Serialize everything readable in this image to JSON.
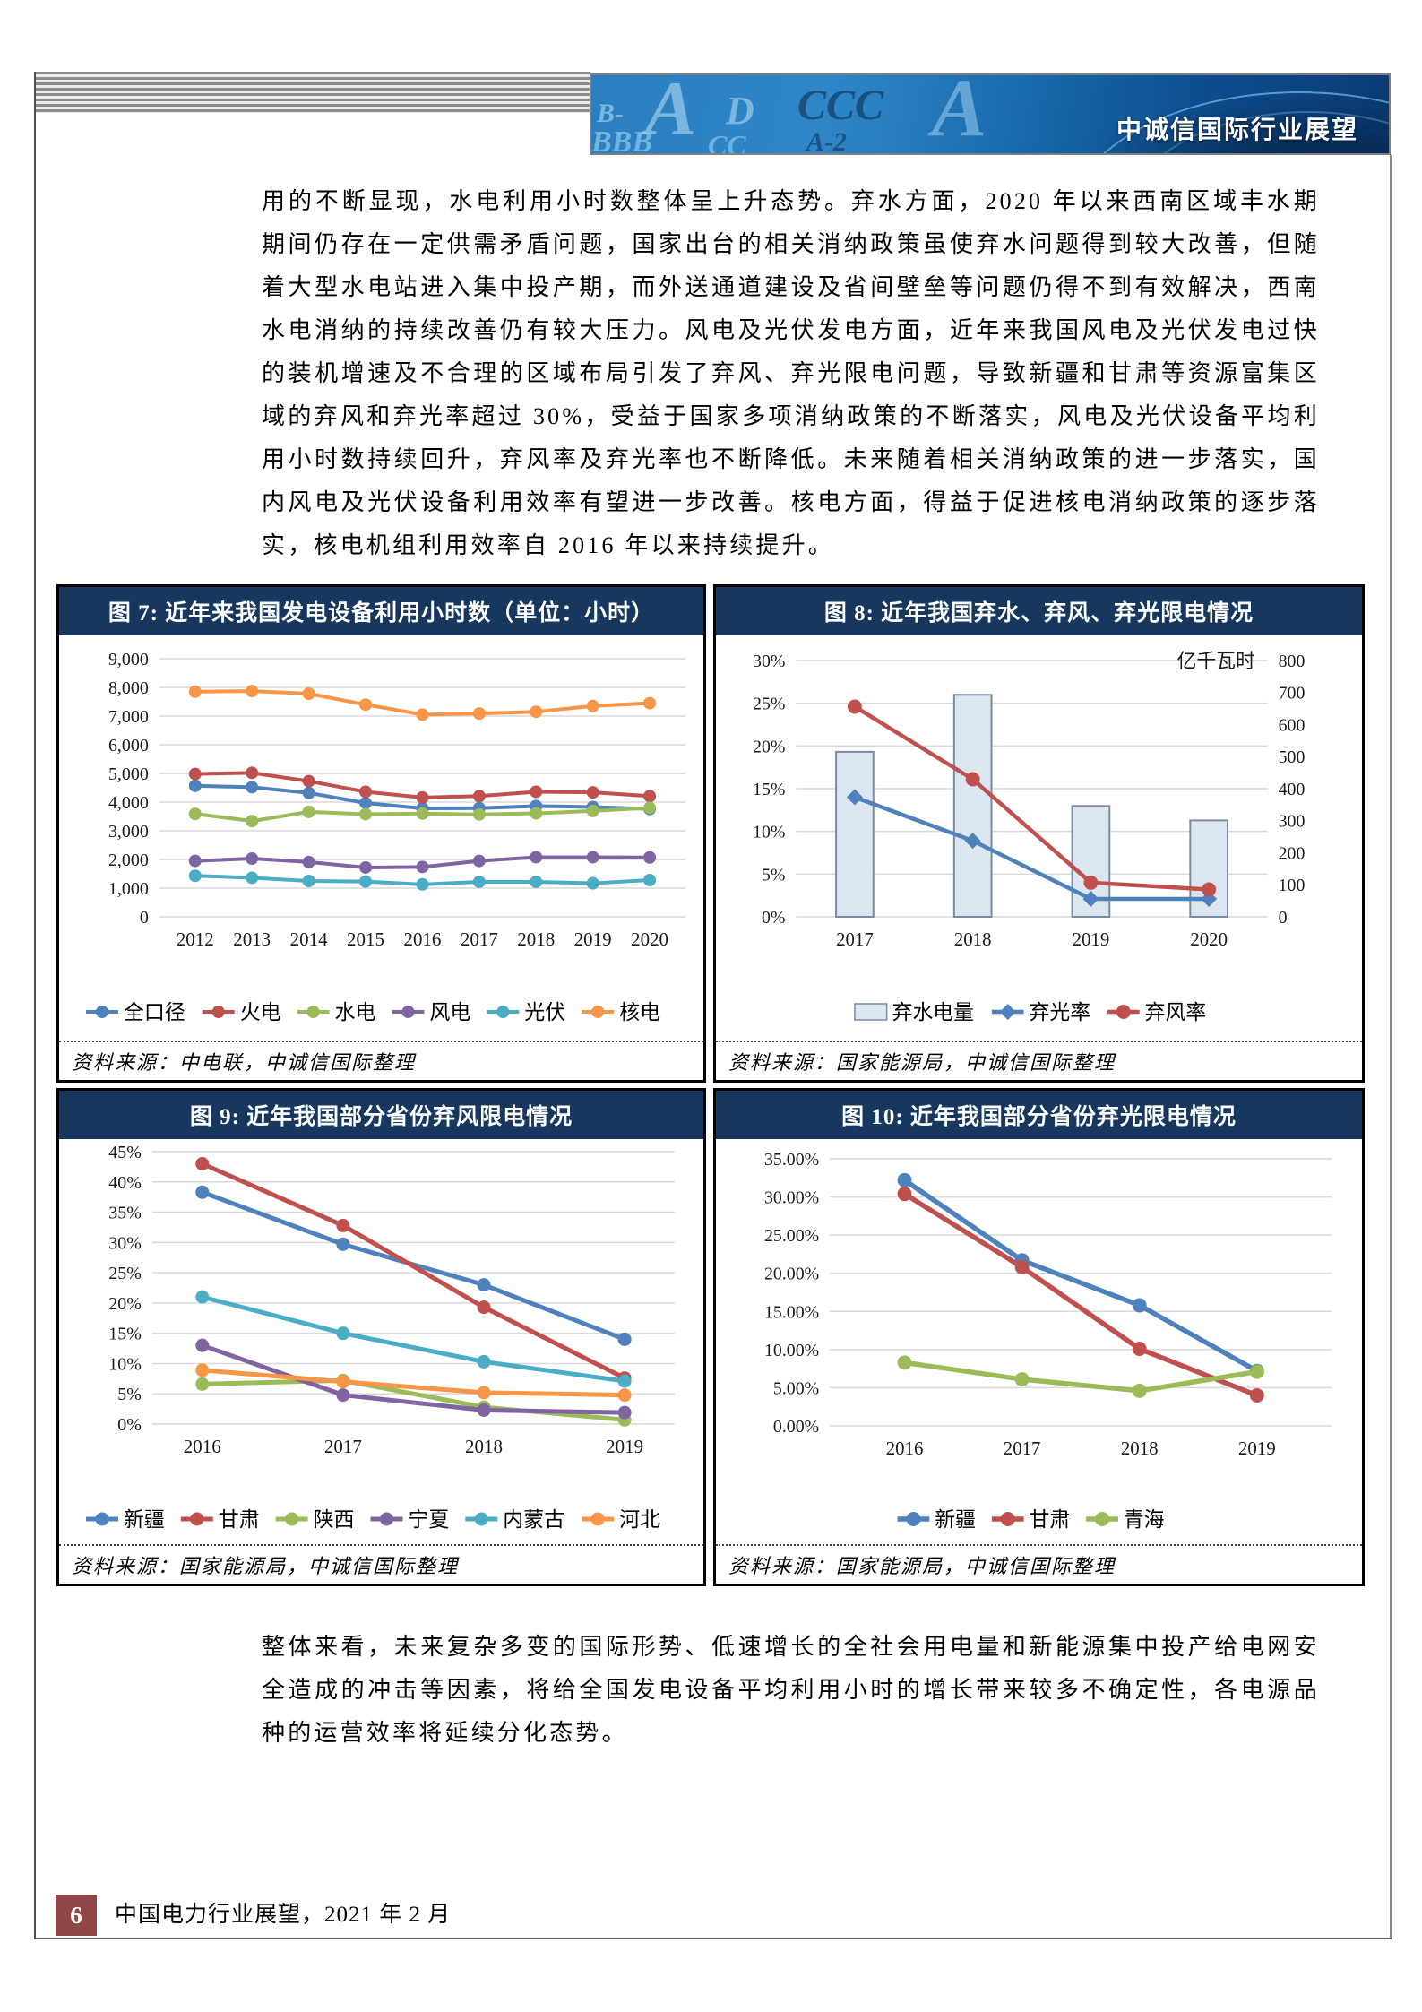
{
  "colors": {
    "title_bar": "#17375E",
    "footer_badge": "#8E4646"
  },
  "header": {
    "banner_title": "中诚信国际行业展望",
    "watermarks": [
      "B-",
      "A",
      "D",
      "CCC",
      "A",
      "BBB",
      "CC",
      "A-2"
    ]
  },
  "paragraphs": {
    "p1": "用的不断显现，水电利用小时数整体呈上升态势。弃水方面，2020 年以来西南区域丰水期期间仍存在一定供需矛盾问题，国家出台的相关消纳政策虽使弃水问题得到较大改善，但随着大型水电站进入集中投产期，而外送通道建设及省间壁垒等问题仍得不到有效解决，西南水电消纳的持续改善仍有较大压力。风电及光伏发电方面，近年来我国风电及光伏发电过快的装机增速及不合理的区域布局引发了弃风、弃光限电问题，导致新疆和甘肃等资源富集区域的弃风和弃光率超过 30%，受益于国家多项消纳政策的不断落实，风电及光伏设备平均利用小时数持续回升，弃风率及弃光率也不断降低。未来随着相关消纳政策的进一步落实，国内风电及光伏设备利用效率有望进一步改善。核电方面，得益于促进核电消纳政策的逐步落实，核电机组利用效率自 2016 年以来持续提升。",
    "p2": "整体来看，未来复杂多变的国际形势、低速增长的全社会用电量和新能源集中投产给电网安全造成的冲击等因素，将给全国发电设备平均利用小时的增长带来较多不确定性，各电源品种的运营效率将延续分化态势。"
  },
  "chart_data": [
    {
      "type": "line",
      "title": "图 7: 近年来我国发电设备利用小时数（单位：小时）",
      "source": "资料来源：中电联，中诚信国际整理",
      "categories": [
        "2012",
        "2013",
        "2014",
        "2015",
        "2016",
        "2017",
        "2018",
        "2019",
        "2020"
      ],
      "series": [
        {
          "name": "全口径",
          "color": "#4F81BD",
          "marker": "circle",
          "values": [
            4570,
            4520,
            4320,
            3970,
            3780,
            3790,
            3860,
            3830,
            3760
          ]
        },
        {
          "name": "火电",
          "color": "#C0504D",
          "marker": "circle",
          "values": [
            4980,
            5020,
            4730,
            4360,
            4160,
            4210,
            4360,
            4340,
            4210
          ]
        },
        {
          "name": "水电",
          "color": "#9BBB59",
          "marker": "circle",
          "values": [
            3590,
            3340,
            3660,
            3580,
            3600,
            3570,
            3610,
            3690,
            3800
          ]
        },
        {
          "name": "风电",
          "color": "#8064A2",
          "marker": "circle",
          "values": [
            1950,
            2030,
            1910,
            1720,
            1740,
            1950,
            2080,
            2080,
            2070
          ]
        },
        {
          "name": "光伏",
          "color": "#4BACC6",
          "marker": "circle",
          "values": [
            1430,
            1360,
            1250,
            1230,
            1130,
            1220,
            1220,
            1170,
            1280
          ]
        },
        {
          "name": "核电",
          "color": "#F79646",
          "marker": "circle",
          "values": [
            7850,
            7870,
            7780,
            7400,
            7050,
            7090,
            7150,
            7350,
            7450
          ]
        }
      ],
      "ylim": [
        0,
        9000
      ],
      "ytick": 1000,
      "yfmt": "thousands",
      "grid": true,
      "legend_position": "bottom"
    },
    {
      "type": "combo",
      "title": "图 8: 近年我国弃水、弃风、弃光限电情况",
      "source": "资料来源：国家能源局，中诚信国际整理",
      "categories": [
        "2017",
        "2018",
        "2019",
        "2020"
      ],
      "right_axis_label": "亿千瓦时",
      "bar_series": {
        "name": "弃水电量",
        "color": "#DCE6F1",
        "border": "#7A8BA0",
        "axis": "right",
        "values": [
          515,
          693,
          346,
          301
        ]
      },
      "line_series": [
        {
          "name": "弃光率",
          "color": "#4F81BD",
          "marker": "diamond",
          "values": [
            14.0,
            8.9,
            2.1,
            2.1
          ]
        },
        {
          "name": "弃风率",
          "color": "#C0504D",
          "marker": "circle",
          "values": [
            24.6,
            16.1,
            4.0,
            3.2
          ]
        }
      ],
      "ylim": [
        0,
        30
      ],
      "ytick": 5,
      "yfmt": "percent0",
      "y2lim": [
        0,
        800
      ],
      "y2tick": 100,
      "grid": true,
      "legend_position": "bottom"
    },
    {
      "type": "line",
      "title": "图 9: 近年我国部分省份弃风限电情况",
      "source": "资料来源：国家能源局，中诚信国际整理",
      "categories": [
        "2016",
        "2017",
        "2018",
        "2019"
      ],
      "series": [
        {
          "name": "新疆",
          "color": "#4F81BD",
          "marker": "circle",
          "values": [
            38.3,
            29.7,
            23.0,
            14.0
          ]
        },
        {
          "name": "甘肃",
          "color": "#C0504D",
          "marker": "circle",
          "values": [
            43.0,
            32.8,
            19.3,
            7.6
          ]
        },
        {
          "name": "陕西",
          "color": "#9BBB59",
          "marker": "circle",
          "values": [
            6.6,
            7.2,
            2.8,
            0.7
          ]
        },
        {
          "name": "宁夏",
          "color": "#8064A2",
          "marker": "circle",
          "values": [
            13.0,
            4.8,
            2.3,
            1.9
          ]
        },
        {
          "name": "内蒙古",
          "color": "#4BACC6",
          "marker": "circle",
          "values": [
            21.0,
            15.0,
            10.3,
            7.1
          ]
        },
        {
          "name": "河北",
          "color": "#F79646",
          "marker": "circle",
          "values": [
            8.9,
            7.0,
            5.2,
            4.8
          ]
        }
      ],
      "ylim": [
        0,
        45
      ],
      "ytick": 5,
      "yfmt": "percent0",
      "grid": true,
      "legend_position": "bottom"
    },
    {
      "type": "line",
      "title": "图 10: 近年我国部分省份弃光限电情况",
      "source": "资料来源：国家能源局，中诚信国际整理",
      "categories": [
        "2016",
        "2017",
        "2018",
        "2019"
      ],
      "series": [
        {
          "name": "新疆",
          "color": "#4F81BD",
          "marker": "circle",
          "values": [
            32.2,
            21.7,
            15.8,
            7.2
          ]
        },
        {
          "name": "甘肃",
          "color": "#C0504D",
          "marker": "circle",
          "values": [
            30.4,
            20.8,
            10.1,
            4.0
          ]
        },
        {
          "name": "青海",
          "color": "#9BBB59",
          "marker": "circle",
          "values": [
            8.3,
            6.1,
            4.6,
            7.1
          ]
        }
      ],
      "ylim": [
        0,
        35
      ],
      "ytick": 5,
      "yfmt": "percent2",
      "grid": true,
      "legend_position": "bottom"
    }
  ],
  "footer": {
    "page_number": "6",
    "text": "中国电力行业展望，2021 年 2 月"
  }
}
